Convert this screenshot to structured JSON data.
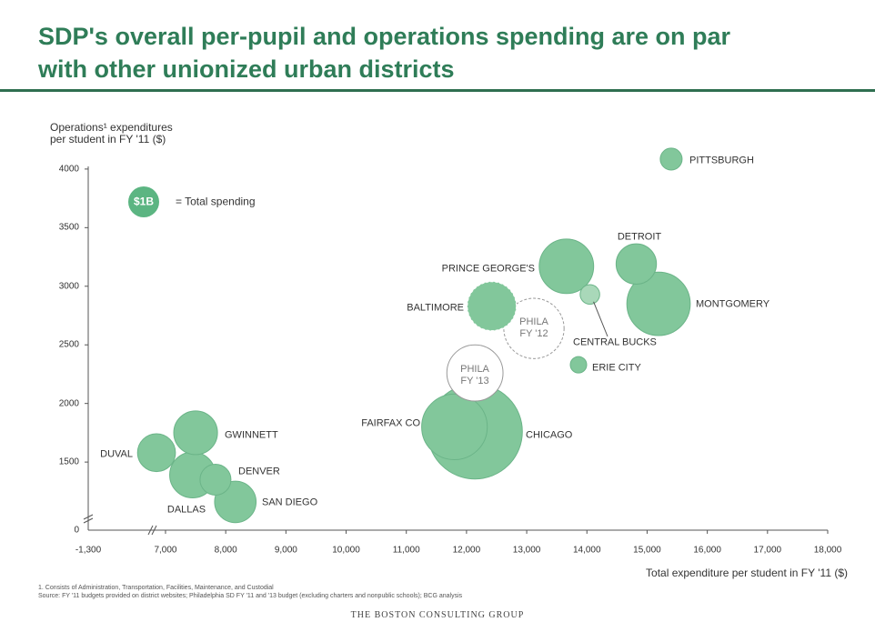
{
  "title": "SDP's overall per-pupil and operations spending are on par\nwith other unionized urban districts",
  "chart_data": {
    "type": "bubble",
    "ylabel": "Operations¹ expenditures\nper student in FY '11 ($)",
    "xlabel": "Total expenditure per student in FY '11 ($)",
    "x_axis_start_label": "-1,300",
    "y_axis_start_label": "0",
    "categories": [
      "PITTSBURGH",
      "DETROIT",
      "PRINCE GEORGE'S",
      "MONTGOMERY",
      "CENTRAL BUCKS",
      "BALTIMORE",
      "PHILA\nFY '12",
      "ERIE CITY",
      "PHILA\nFY '13",
      "FAIRFAX CO",
      "CHICAGO",
      "GWINNETT",
      "DUVAL",
      "DALLAS",
      "DENVER",
      "SAN DIEGO"
    ],
    "x": [
      15400,
      14820,
      13660,
      15190,
      14050,
      12420,
      13120,
      13860,
      12140,
      11800,
      12140,
      7500,
      6850,
      7450,
      7830,
      8160
    ],
    "values": [
      4085,
      3190,
      3170,
      2850,
      2930,
      2830,
      2640,
      2330,
      2260,
      1800,
      1760,
      1750,
      1580,
      1390,
      1350,
      1160
    ],
    "sizes": [
      0.5,
      1.7,
      3.1,
      4.2,
      0.4,
      2.5,
      3.8,
      0.28,
      3.3,
      4.5,
      9.4,
      2.0,
      1.5,
      2.2,
      1.0,
      1.8
    ],
    "fills": [
      "#82c79b",
      "#82c79b",
      "#82c79b",
      "#82c79b",
      "#a9d8b9",
      "#82c79b",
      "#ffffff",
      "#82c79b",
      "#ffffff",
      "#82c79b",
      "#82c79b",
      "#82c79b",
      "#82c79b",
      "#82c79b",
      "#82c79b",
      "#82c79b"
    ],
    "dashed": [
      false,
      false,
      false,
      false,
      false,
      true,
      true,
      false,
      false,
      false,
      false,
      false,
      false,
      false,
      false,
      false
    ],
    "legend_bubble": {
      "size": 1,
      "label": "$1B",
      "text": "= Total spending",
      "color": "#5cb582"
    },
    "xlim": [
      5716,
      18000
    ],
    "ylim": [
      919,
      4100
    ],
    "xticks": [
      {
        "value": 7000,
        "label": "7,000"
      },
      {
        "value": 8000,
        "label": "8,000"
      },
      {
        "value": 9000,
        "label": "9,000"
      },
      {
        "value": 10000,
        "label": "10,000"
      },
      {
        "value": 11000,
        "label": "11,000"
      },
      {
        "value": 12000,
        "label": "12,000"
      },
      {
        "value": 13000,
        "label": "13,000"
      },
      {
        "value": 14000,
        "label": "14,000"
      },
      {
        "value": 15000,
        "label": "15,000"
      },
      {
        "value": 16000,
        "label": "16,000"
      },
      {
        "value": 17000,
        "label": "17,000"
      },
      {
        "value": 18000,
        "label": "18,000"
      }
    ],
    "yticks": [
      1500,
      2000,
      2500,
      3000,
      3500,
      4000
    ]
  },
  "footnotes": [
    "1. Consists of Administration, Transportation, Facilities, Maintenance, and Custodial",
    "Source: FY '11 budgets provided on district websites; Philadelphia SD FY '11 and '13 budget (excluding charters and nonpublic schools); BCG analysis"
  ],
  "footer": "THE BOSTON CONSULTING GROUP"
}
